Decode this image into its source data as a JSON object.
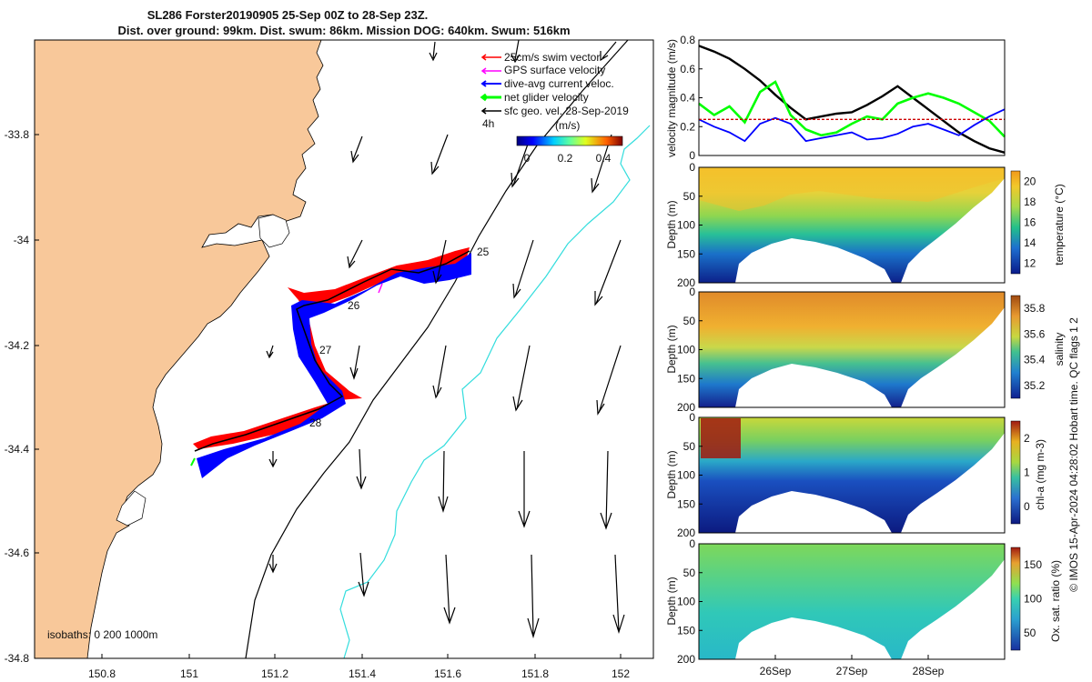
{
  "header": {
    "title_line1": "SL286 Forster20190905 25-Sep 00Z to 28-Sep 23Z.",
    "title_line2": "Dist. over ground: 99km. Dist. swum: 86km. Mission DOG: 640km. Swum: 516km"
  },
  "colors": {
    "land": "#f8c89a",
    "swim_red": "#ff0000",
    "current_blue": "#0000ff",
    "net_green": "#00ff00",
    "gps_magenta": "#ff00ff",
    "isobath_black": "#000000",
    "isobath_cyan": "#33dddd"
  },
  "map": {
    "x_ticks": [
      "150.8",
      "151",
      "151.2",
      "151.4",
      "151.6",
      "151.8",
      "152"
    ],
    "y_ticks": [
      "-33.8",
      "-34",
      "-34.2",
      "-34.4",
      "-34.6",
      "-34.8"
    ],
    "legend": [
      "25cm/s swim vector",
      "GPS surface velocity",
      "dive-avg current veloc.",
      "net glider velocity",
      "sfc geo. vel. 28-Sep-2019"
    ],
    "interval_label": "4h",
    "colorbar_unit": "(m/s)",
    "colorbar_ticks": [
      "0",
      "0.2",
      "0.4"
    ],
    "day_labels": [
      "25",
      "26",
      "27",
      "28"
    ],
    "isobaths_label": "isobaths: 0 200 1000m"
  },
  "side_panels": {
    "date_ticks": [
      "26Sep",
      "27Sep",
      "28Sep"
    ],
    "footer_note": "© IMOS 15-Apr-2024 04:28:02 Hobart time. QC flags 1 2"
  },
  "chart_data": [
    {
      "type": "line",
      "ylabel": "velocity magnitude (m/s)",
      "ylim": [
        0,
        0.8
      ],
      "y_ticks": [
        "0",
        "0.2",
        "0.4",
        "0.6",
        "0.8"
      ],
      "x": [
        0,
        0.2,
        0.4,
        0.6,
        0.8,
        1.0,
        1.2,
        1.4,
        1.6,
        1.8,
        2.0,
        2.2,
        2.4,
        2.6,
        2.8,
        3.0,
        3.2,
        3.4,
        3.6,
        3.8,
        4.0
      ],
      "series": [
        {
          "values": [
            0.76,
            0.72,
            0.67,
            0.6,
            0.52,
            0.42,
            0.33,
            0.25,
            0.27,
            0.29,
            0.3,
            0.35,
            0.41,
            0.48,
            0.4,
            0.32,
            0.24,
            0.16,
            0.1,
            0.05,
            0.02
          ]
        },
        {
          "values": [
            0.36,
            0.28,
            0.34,
            0.23,
            0.44,
            0.51,
            0.28,
            0.18,
            0.14,
            0.16,
            0.22,
            0.27,
            0.25,
            0.36,
            0.4,
            0.43,
            0.4,
            0.36,
            0.3,
            0.24,
            0.13
          ]
        },
        {
          "values": [
            0.25,
            0.2,
            0.16,
            0.1,
            0.22,
            0.26,
            0.22,
            0.1,
            0.12,
            0.14,
            0.16,
            0.11,
            0.12,
            0.15,
            0.2,
            0.22,
            0.18,
            0.14,
            0.21,
            0.27,
            0.32
          ]
        },
        {
          "values": [
            0.25,
            0.25,
            0.25,
            0.25,
            0.25,
            0.25,
            0.25,
            0.25,
            0.25,
            0.25,
            0.25,
            0.25,
            0.25,
            0.25,
            0.25,
            0.25,
            0.25,
            0.25,
            0.25,
            0.25,
            0.25
          ]
        }
      ]
    },
    {
      "type": "heatmap",
      "ylabel": "Depth (m)",
      "cbar_label": "temperature (°C)",
      "cbar_ticks": [
        "12",
        "14",
        "16",
        "18",
        "20"
      ],
      "y_ticks": [
        "0",
        "50",
        "100",
        "150",
        "200"
      ]
    },
    {
      "type": "heatmap",
      "ylabel": "Depth (m)",
      "cbar_label": "salinity",
      "cbar_ticks": [
        "35.2",
        "35.4",
        "35.6",
        "35.8"
      ],
      "y_ticks": [
        "0",
        "50",
        "100",
        "150",
        "200"
      ]
    },
    {
      "type": "heatmap",
      "ylabel": "Depth (m)",
      "cbar_label": "chl-a (mg m-3)",
      "cbar_ticks": [
        "0",
        "1",
        "2"
      ],
      "y_ticks": [
        "0",
        "50",
        "100",
        "150",
        "200"
      ]
    },
    {
      "type": "heatmap",
      "ylabel": "Depth (m)",
      "cbar_label": "Ox. sat. ratio (%)",
      "cbar_ticks": [
        "50",
        "100",
        "150"
      ],
      "y_ticks": [
        "0",
        "50",
        "100",
        "150",
        "200"
      ]
    }
  ]
}
